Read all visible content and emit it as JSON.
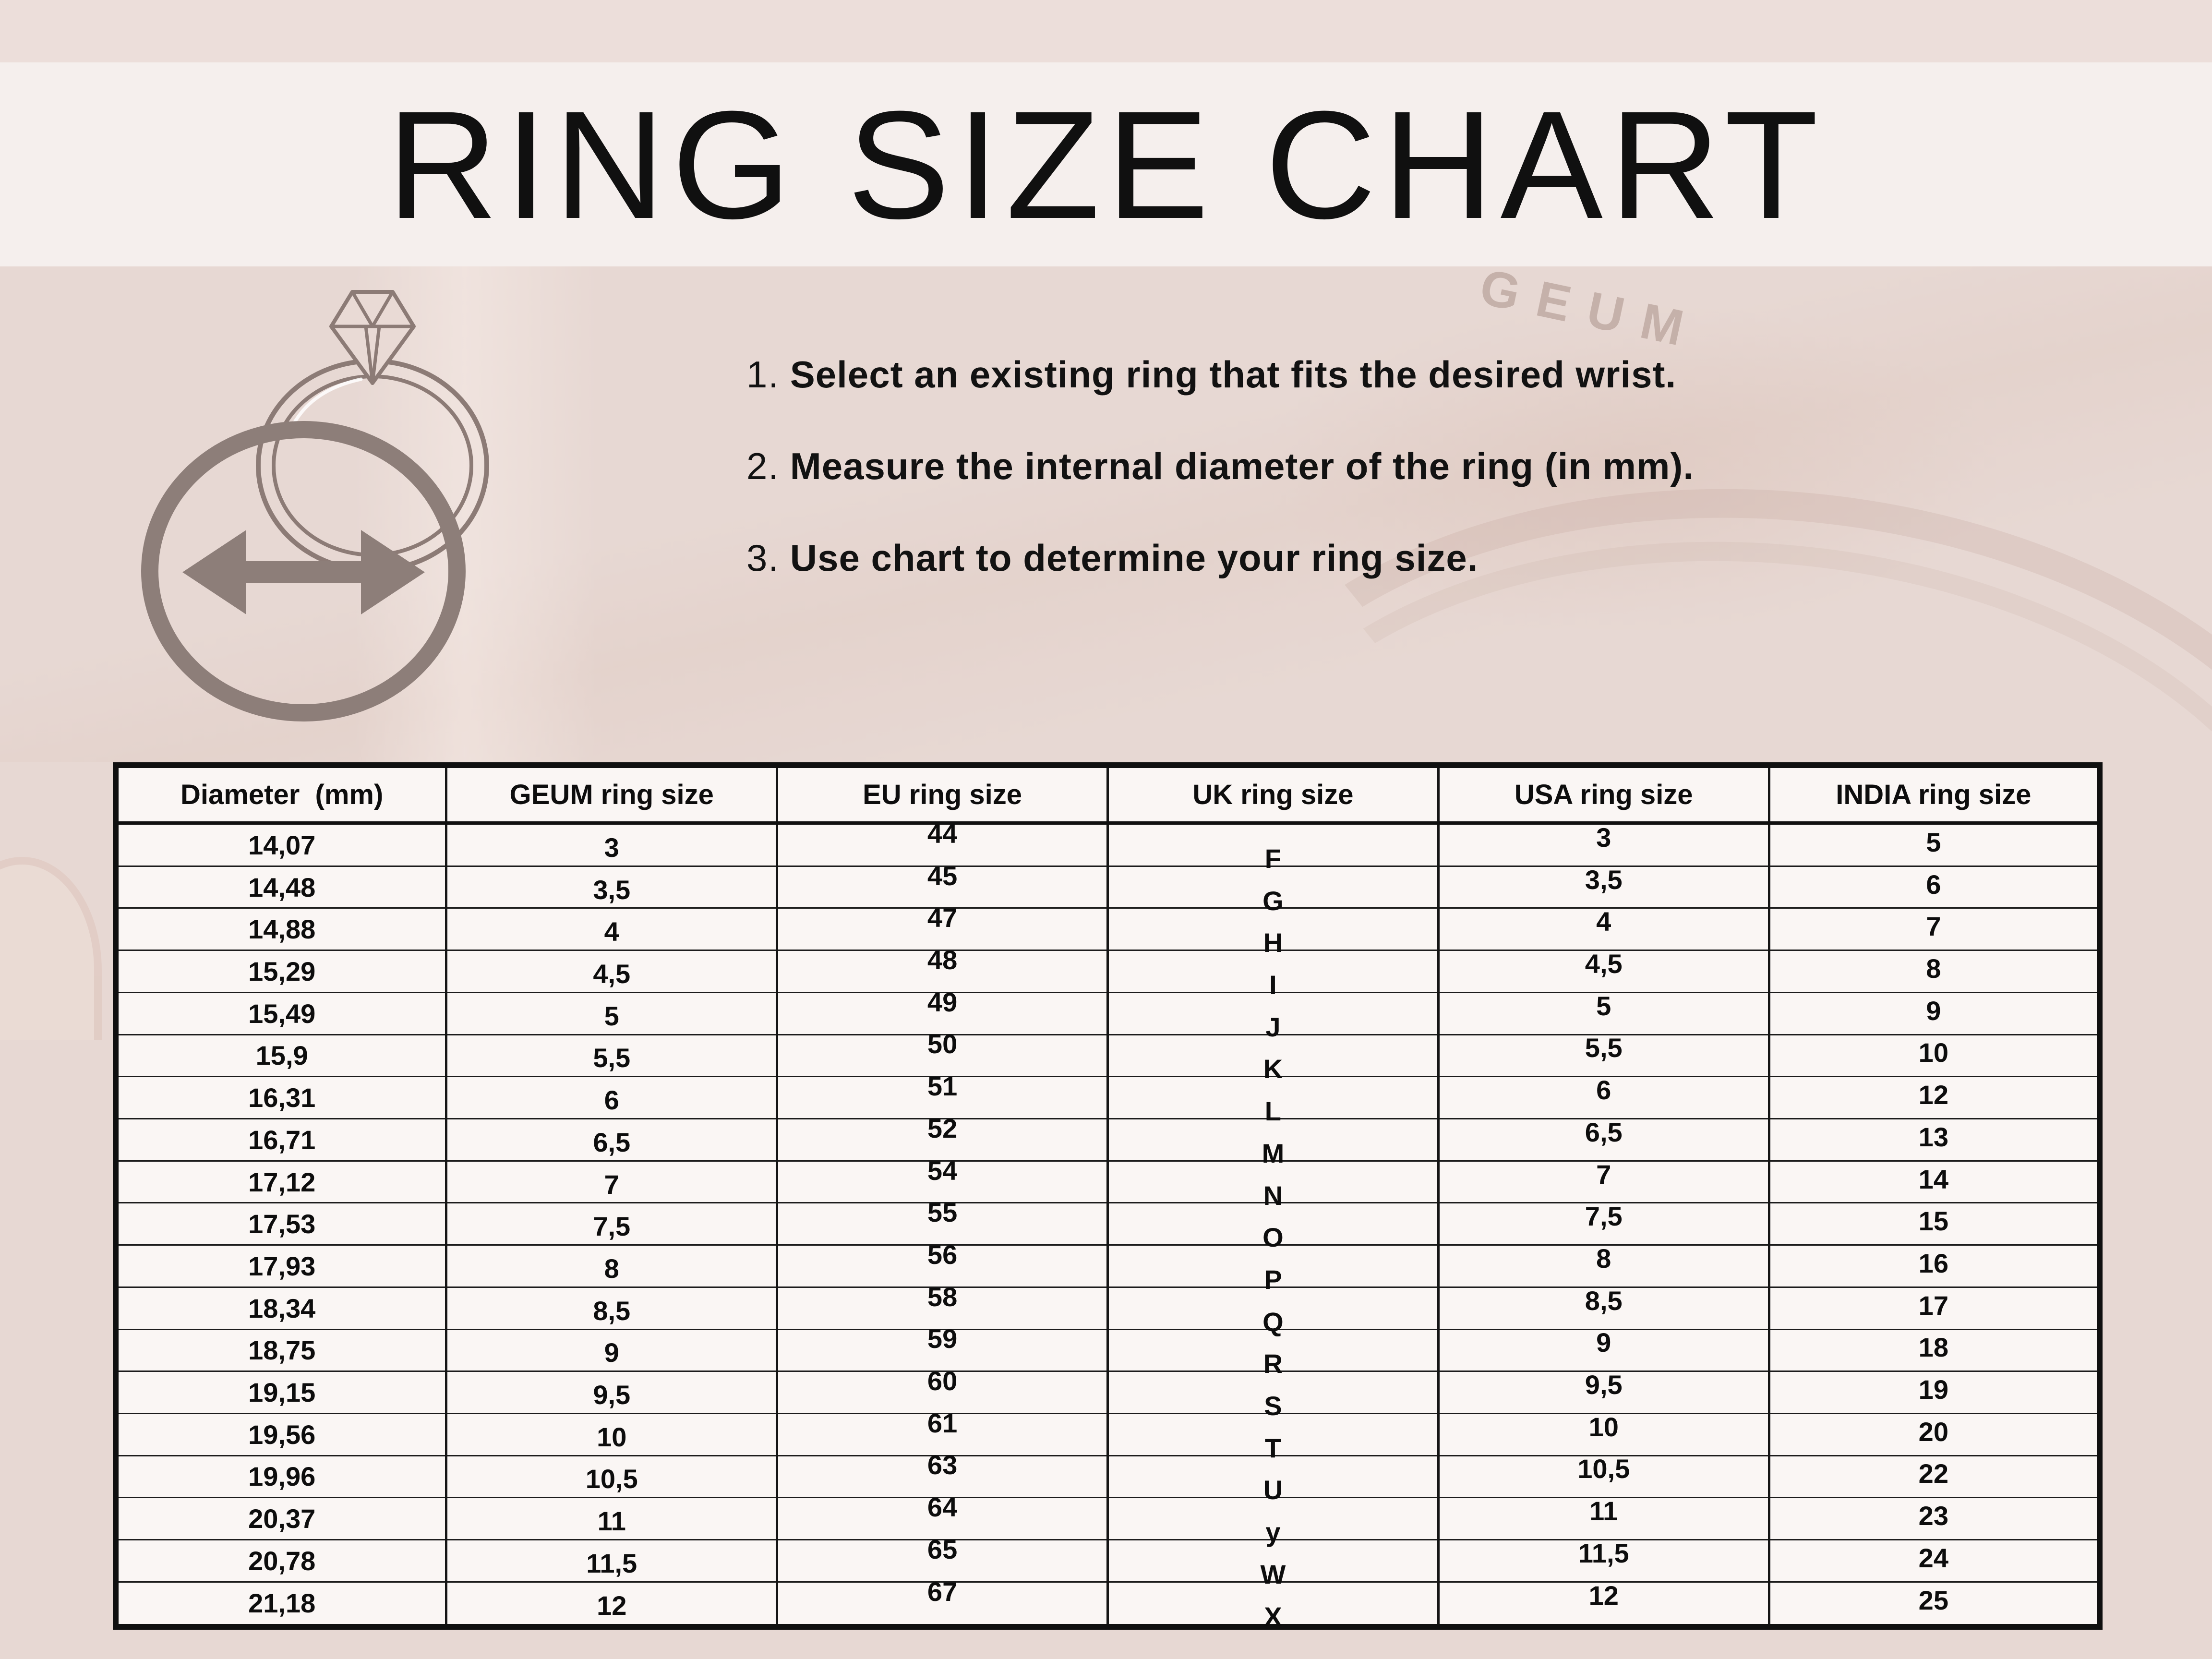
{
  "page": {
    "title": "RING SIZE CHART"
  },
  "watermark": "GEUM",
  "instructions": {
    "items": [
      {
        "num": "1.",
        "text": "Select an existing ring that fits the desired wrist."
      },
      {
        "num": "2.",
        "text": "Measure the internal diameter of the ring (in mm)."
      },
      {
        "num": "3.",
        "text": "Use chart to determine your ring size."
      }
    ]
  },
  "icons": {
    "ring": "diamond-ring-icon",
    "diameter": "diameter-arrow-icon"
  },
  "colors": {
    "top_strip": "#ecdeda",
    "banner": "#f5efed",
    "background": "#e7d8d3",
    "cell_background": "#faf6f4",
    "line": "#101010",
    "graphic": "#8d7e79"
  },
  "table": {
    "columns": [
      "Diameter  (mm)",
      "GEUM ring size",
      "EU ring size",
      "UK ring size",
      "USA ring size",
      "INDIA ring size"
    ],
    "rows": [
      [
        "14,07",
        "3",
        "44",
        "F",
        "3",
        "5"
      ],
      [
        "14,48",
        "3,5",
        "45",
        "G",
        "3,5",
        "6"
      ],
      [
        "14,88",
        "4",
        "47",
        "H",
        "4",
        "7"
      ],
      [
        "15,29",
        "4,5",
        "48",
        "I",
        "4,5",
        "8"
      ],
      [
        "15,49",
        "5",
        "49",
        "J",
        "5",
        "9"
      ],
      [
        "15,9",
        "5,5",
        "50",
        "K",
        "5,5",
        "10"
      ],
      [
        "16,31",
        "6",
        "51",
        "L",
        "6",
        "12"
      ],
      [
        "16,71",
        "6,5",
        "52",
        "M",
        "6,5",
        "13"
      ],
      [
        "17,12",
        "7",
        "54",
        "N",
        "7",
        "14"
      ],
      [
        "17,53",
        "7,5",
        "55",
        "O",
        "7,5",
        "15"
      ],
      [
        "17,93",
        "8",
        "56",
        "P",
        "8",
        "16"
      ],
      [
        "18,34",
        "8,5",
        "58",
        "Q",
        "8,5",
        "17"
      ],
      [
        "18,75",
        "9",
        "59",
        "R",
        "9",
        "18"
      ],
      [
        "19,15",
        "9,5",
        "60",
        "S",
        "9,5",
        "19"
      ],
      [
        "19,56",
        "10",
        "61",
        "T",
        "10",
        "20"
      ],
      [
        "19,96",
        "10,5",
        "63",
        "U",
        "10,5",
        "22"
      ],
      [
        "20,37",
        "11",
        "64",
        "y",
        "11",
        "23"
      ],
      [
        "20,78",
        "11,5",
        "65",
        "W",
        "11,5",
        "24"
      ],
      [
        "21,18",
        "12",
        "67",
        "X",
        "12",
        "25"
      ]
    ]
  }
}
